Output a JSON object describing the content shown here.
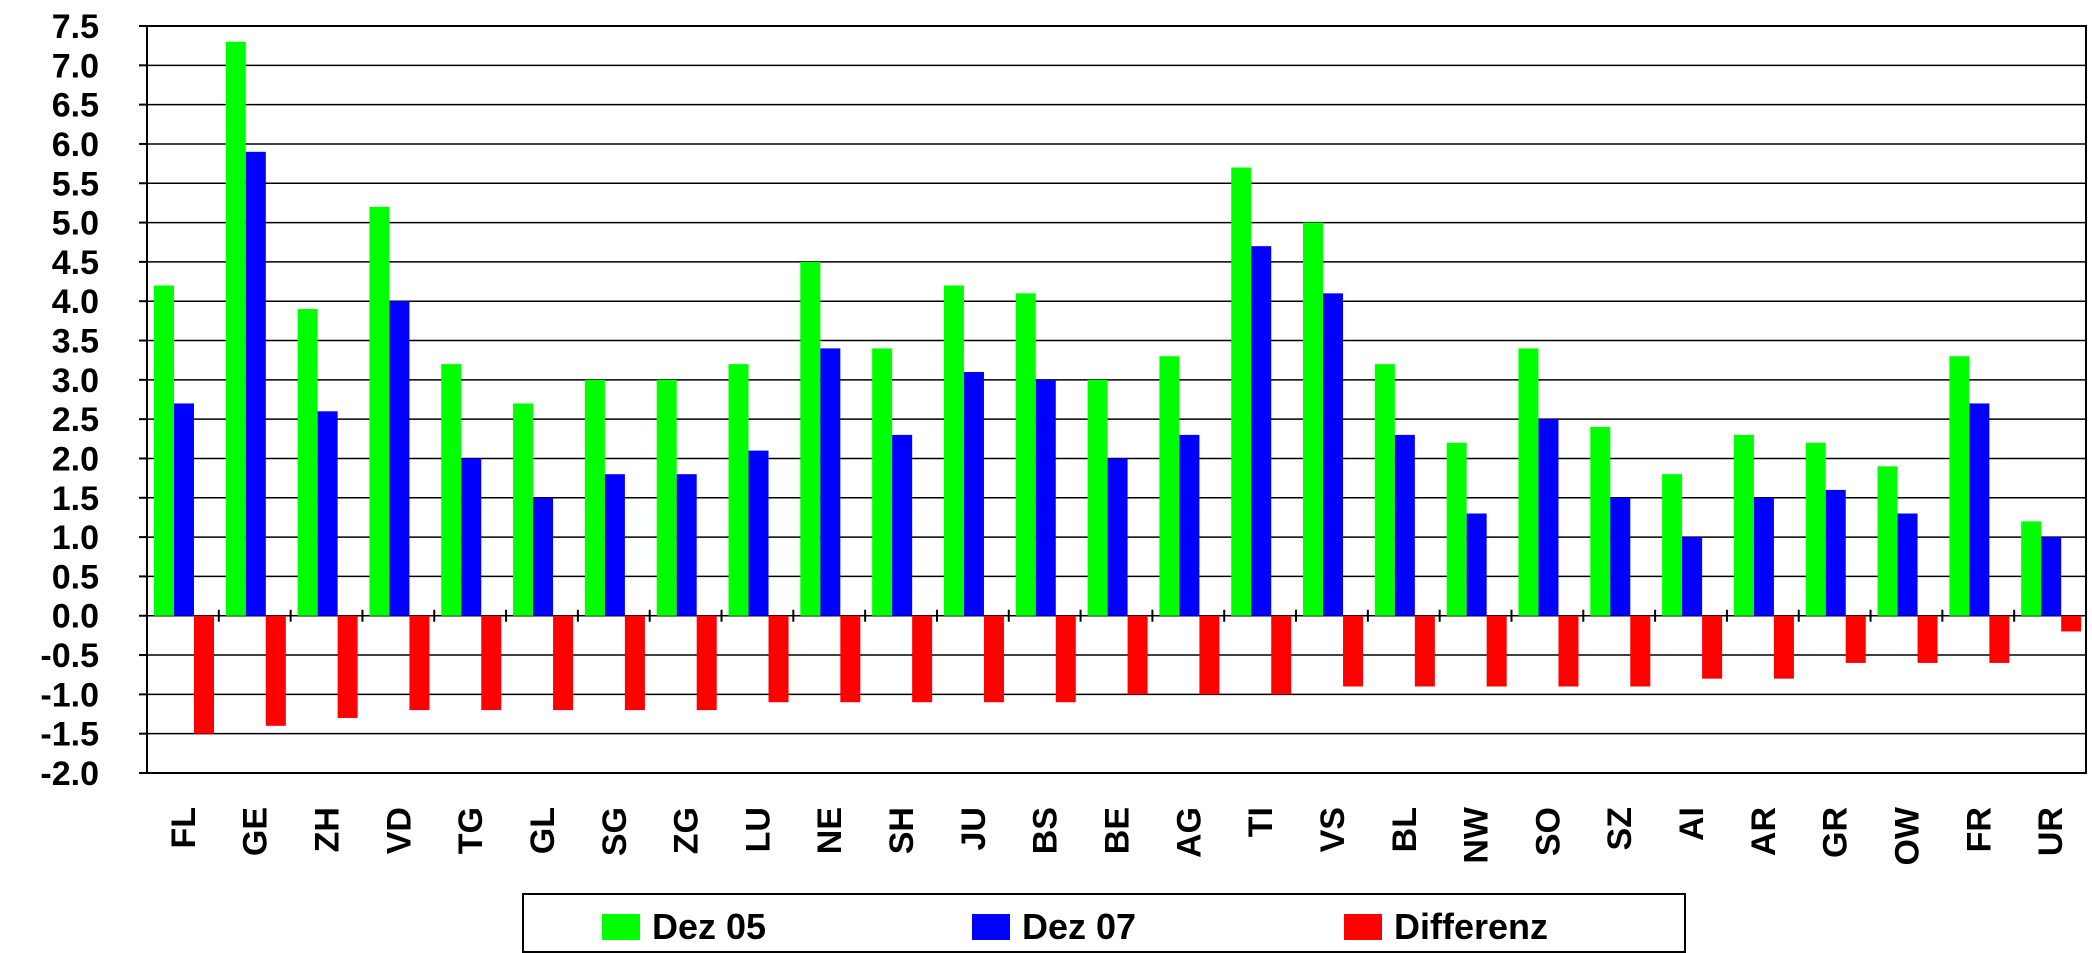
{
  "chart_data": {
    "type": "bar",
    "categories": [
      "FL",
      "GE",
      "ZH",
      "VD",
      "TG",
      "GL",
      "SG",
      "ZG",
      "LU",
      "NE",
      "SH",
      "JU",
      "BS",
      "BE",
      "AG",
      "TI",
      "VS",
      "BL",
      "NW",
      "SO",
      "SZ",
      "AI",
      "AR",
      "GR",
      "OW",
      "FR",
      "UR"
    ],
    "series": [
      {
        "name": "Dez 05",
        "color": "#00ff00",
        "values": [
          4.2,
          7.3,
          3.9,
          5.2,
          3.2,
          2.7,
          3.0,
          3.0,
          3.2,
          4.5,
          3.4,
          4.2,
          4.1,
          3.0,
          3.3,
          5.7,
          5.0,
          3.2,
          2.2,
          3.4,
          2.4,
          1.8,
          2.3,
          2.2,
          1.9,
          3.3,
          1.2
        ]
      },
      {
        "name": "Dez 07",
        "color": "#0000ff",
        "values": [
          2.7,
          5.9,
          2.6,
          4.0,
          2.0,
          1.5,
          1.8,
          1.8,
          2.1,
          3.4,
          2.3,
          3.1,
          3.0,
          2.0,
          2.3,
          4.7,
          4.1,
          2.3,
          1.3,
          2.5,
          1.5,
          1.0,
          1.5,
          1.6,
          1.3,
          2.7,
          1.0
        ]
      },
      {
        "name": "Differenz",
        "color": "#ff0000",
        "values": [
          -1.5,
          -1.4,
          -1.3,
          -1.2,
          -1.2,
          -1.2,
          -1.2,
          -1.2,
          -1.1,
          -1.1,
          -1.1,
          -1.1,
          -1.1,
          -1.0,
          -1.0,
          -1.0,
          -0.9,
          -0.9,
          -0.9,
          -0.9,
          -0.9,
          -0.8,
          -0.8,
          -0.6,
          -0.6,
          -0.6,
          -0.2
        ]
      }
    ],
    "yticks": [
      "7.5",
      "7.0",
      "6.5",
      "6.0",
      "5.5",
      "5.0",
      "4.5",
      "4.0",
      "3.5",
      "3.0",
      "2.5",
      "2.0",
      "1.5",
      "1.0",
      "0.5",
      "0.0",
      "-0.5",
      "-1.0",
      "-1.5",
      "-2.0"
    ],
    "ylim": [
      -2.0,
      7.5
    ],
    "grid": true,
    "legend_position": "bottom"
  },
  "legend": {
    "items": [
      {
        "label": "Dez 05",
        "color": "#00ff00"
      },
      {
        "label": "Dez 07",
        "color": "#0000ff"
      },
      {
        "label": "Differenz",
        "color": "#ff0000"
      }
    ]
  }
}
